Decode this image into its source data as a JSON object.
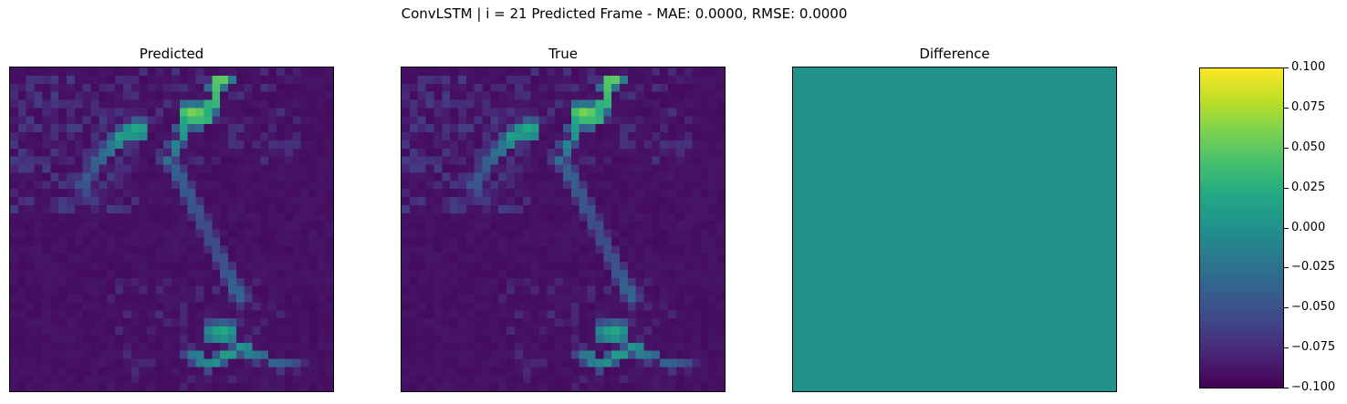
{
  "figure": {
    "suptitle": "ConvLSTM | i = 21 Predicted Frame - MAE: 0.0000, RMSE: 0.0000"
  },
  "chart_data": [
    {
      "type": "heatmap",
      "title": "Predicted",
      "grid": false,
      "axis_ticks": "hidden",
      "colormap": "viridis",
      "value_range": [
        0,
        1
      ],
      "resolution": [
        40,
        40
      ],
      "background_value": 0.03,
      "features": [
        {
          "shape": "bright-line",
          "points": [
            [
              25.5,
              0.5
            ],
            [
              25,
              2
            ],
            [
              24,
              5
            ],
            [
              23,
              6
            ],
            [
              22,
              5
            ],
            [
              21,
              7
            ],
            [
              20,
              9
            ],
            [
              19,
              11
            ]
          ],
          "values": [
            0.75,
            0.7,
            0.6,
            0.68,
            0.5,
            0.55,
            0.42,
            0.35
          ]
        },
        {
          "shape": "bright-blob",
          "center": [
            21,
            5
          ],
          "values_row": [
            0.7,
            0.8,
            0.75
          ]
        },
        {
          "shape": "bright-blob",
          "center": [
            15,
            6.5
          ],
          "values_row": [
            0.6,
            0.55
          ]
        },
        {
          "shape": "trail",
          "description": "values along left arm",
          "points": [
            [
              14,
              7
            ],
            [
              13,
              8
            ],
            [
              12,
              9
            ],
            [
              10,
              11
            ],
            [
              9,
              13
            ],
            [
              8,
              14
            ],
            [
              9,
              15
            ],
            [
              10,
              16
            ]
          ],
          "values": [
            0.5,
            0.55,
            0.4,
            0.3,
            0.28,
            0.25,
            0.2,
            0.15
          ]
        },
        {
          "shape": "trail",
          "points": [
            [
              20,
              12
            ],
            [
              21,
              14
            ],
            [
              22,
              16
            ],
            [
              23,
              18
            ],
            [
              24,
              20
            ],
            [
              25,
              22
            ],
            [
              26,
              24
            ],
            [
              27,
              26
            ],
            [
              28,
              28
            ]
          ],
          "values": [
            0.3,
            0.28,
            0.26,
            0.24,
            0.22,
            0.24,
            0.25,
            0.3,
            0.32
          ]
        },
        {
          "shape": "bright-blob",
          "center": [
            24,
            32
          ],
          "values_row": [
            0.45,
            0.55,
            0.6,
            0.5
          ]
        },
        {
          "shape": "bright-line",
          "points": [
            [
              22,
              35
            ],
            [
              24,
              36
            ],
            [
              26,
              35
            ],
            [
              28,
              34
            ],
            [
              30,
              35
            ],
            [
              33,
              36
            ],
            [
              35,
              36
            ]
          ],
          "values": [
            0.4,
            0.45,
            0.55,
            0.5,
            0.35,
            0.3,
            0.2
          ]
        }
      ]
    },
    {
      "type": "heatmap",
      "title": "True",
      "grid": false,
      "axis_ticks": "hidden",
      "colormap": "viridis",
      "value_range": [
        0,
        1
      ],
      "resolution": [
        40,
        40
      ],
      "same_as": "Predicted"
    },
    {
      "type": "heatmap",
      "title": "Difference",
      "grid": false,
      "axis_ticks": "hidden",
      "colormap": "viridis",
      "value_range": [
        -0.1,
        0.1
      ],
      "uniform_value": 0.0,
      "colorbar": {
        "ticks": [
          "0.100",
          "0.075",
          "0.050",
          "0.025",
          "0.000",
          "−0.025",
          "−0.050",
          "−0.075",
          "−0.100"
        ],
        "tick_values": [
          0.1,
          0.075,
          0.05,
          0.025,
          0.0,
          -0.025,
          -0.05,
          -0.075,
          -0.1
        ],
        "vmin": -0.1,
        "vmax": 0.1
      }
    }
  ]
}
